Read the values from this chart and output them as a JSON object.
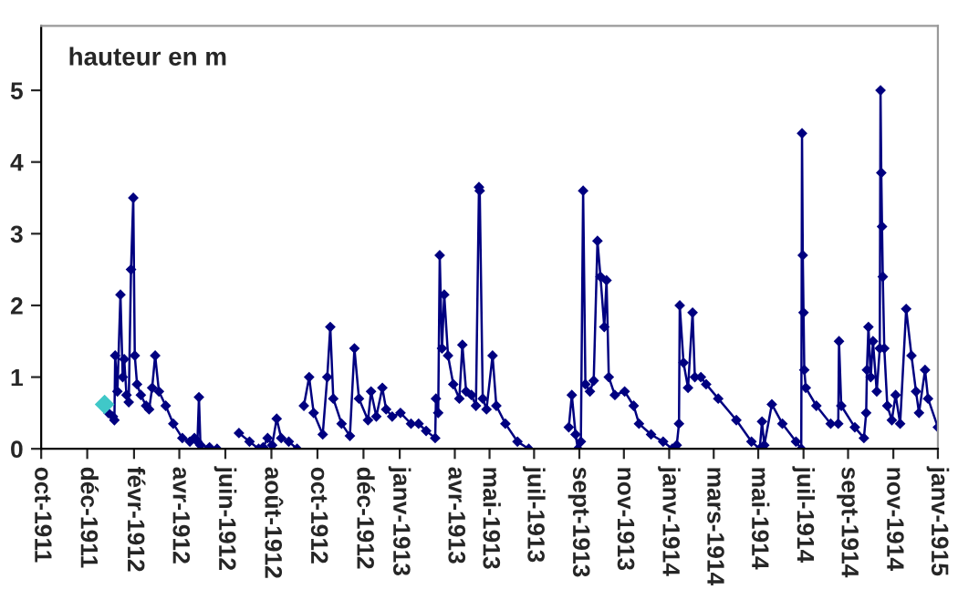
{
  "chart_data": {
    "type": "line",
    "ylabel": "hauteur en m",
    "xlim": [
      "1911-10-01",
      "1915-01-01"
    ],
    "ylim": [
      0,
      5.9
    ],
    "yticks": [
      0,
      1,
      2,
      3,
      4,
      5
    ],
    "xticks": [
      {
        "value": "1911-10-01",
        "label": "oct-1911"
      },
      {
        "value": "1911-12-01",
        "label": "déc-1911"
      },
      {
        "value": "1912-02-01",
        "label": "févr-1912"
      },
      {
        "value": "1912-04-01",
        "label": "avr-1912"
      },
      {
        "value": "1912-06-01",
        "label": "juin-1912"
      },
      {
        "value": "1912-08-01",
        "label": "août-1912"
      },
      {
        "value": "1912-10-01",
        "label": "oct-1912"
      },
      {
        "value": "1912-12-01",
        "label": "déc-1912"
      },
      {
        "value": "1913-01-18",
        "label": "janv-1913"
      },
      {
        "value": "1913-04-01",
        "label": "avr-1913"
      },
      {
        "value": "1913-05-17",
        "label": "mai-1913"
      },
      {
        "value": "1913-07-15",
        "label": "juil-1913"
      },
      {
        "value": "1913-09-13",
        "label": "sept-1913"
      },
      {
        "value": "1913-11-11",
        "label": "nov-1913"
      },
      {
        "value": "1914-01-10",
        "label": "janv-1914"
      },
      {
        "value": "1914-03-10",
        "label": "mars-1914"
      },
      {
        "value": "1914-05-08",
        "label": "mai-1914"
      },
      {
        "value": "1914-07-07",
        "label": "juil-1914"
      },
      {
        "value": "1914-09-04",
        "label": "sept-1914"
      },
      {
        "value": "1914-11-03",
        "label": "nov-1914"
      },
      {
        "value": "1915-01-01",
        "label": "janv-1915"
      }
    ],
    "marker": "diamond",
    "line_style": "solid",
    "grid": false,
    "legend": false,
    "series": [
      {
        "type": "scatter",
        "color": "#40c8c8",
        "x": [
          "1911-12-24"
        ],
        "values": [
          0.62
        ]
      },
      {
        "type": "line",
        "color": "#000080",
        "x": [
          "1911-12-29",
          "1912-01-04",
          "1912-01-06",
          "1912-01-07",
          "1912-01-10",
          "1912-01-14",
          "1912-01-17",
          "1912-01-19",
          "1912-01-22",
          "1912-01-25",
          "1912-01-28",
          "1912-01-31",
          "1912-02-02",
          "1912-02-05",
          "1912-02-10",
          "1912-02-17",
          "1912-02-21",
          "1912-02-25",
          "1912-02-29",
          "1912-03-05",
          "1912-03-14",
          "1912-03-24",
          "1912-04-05",
          "1912-04-15",
          "1912-04-21",
          "1912-04-25",
          "1912-04-27",
          "1912-04-29",
          "1912-05-11",
          "1912-05-21",
          "1912-06-05",
          "1912-06-19",
          "1912-07-03",
          "1912-07-15",
          "1912-07-21",
          "1912-07-27",
          "1912-08-02",
          "1912-08-08",
          "1912-08-14",
          "1912-08-24",
          "1912-09-04",
          "1912-09-08",
          "1912-09-13",
          "1912-09-20",
          "1912-09-26",
          "1912-10-08",
          "1912-10-14",
          "1912-10-18",
          "1912-10-22",
          "1912-11-02",
          "1912-11-13",
          "1912-11-19",
          "1912-11-25",
          "1912-12-07",
          "1912-12-11",
          "1912-12-18",
          "1912-12-26",
          "1912-12-31",
          "1913-01-08",
          "1913-01-19",
          "1913-02-02",
          "1913-02-12",
          "1913-02-22",
          "1913-03-06",
          "1913-03-07",
          "1913-03-10",
          "1913-03-12",
          "1913-03-15",
          "1913-03-18",
          "1913-03-23",
          "1913-03-30",
          "1913-04-07",
          "1913-04-11",
          "1913-04-16",
          "1913-04-23",
          "1913-04-29",
          "1913-05-03",
          "1913-05-04",
          "1913-05-08",
          "1913-05-13",
          "1913-05-21",
          "1913-05-26",
          "1913-06-07",
          "1913-06-23",
          "1913-07-08",
          "1913-07-30",
          "1913-08-30",
          "1913-09-03",
          "1913-09-08",
          "1913-09-11",
          "1913-09-15",
          "1913-09-18",
          "1913-09-21",
          "1913-09-27",
          "1913-10-02",
          "1913-10-07",
          "1913-10-11",
          "1913-10-16",
          "1913-10-19",
          "1913-10-22",
          "1913-10-30",
          "1913-11-12",
          "1913-11-24",
          "1913-12-01",
          "1913-12-17",
          "1914-01-02",
          "1914-01-14",
          "1914-01-20",
          "1914-01-23",
          "1914-01-24",
          "1914-01-29",
          "1914-02-04",
          "1914-02-10",
          "1914-02-13",
          "1914-02-21",
          "1914-02-28",
          "1914-03-16",
          "1914-04-09",
          "1914-04-29",
          "1914-05-10",
          "1914-05-13",
          "1914-05-16",
          "1914-05-26",
          "1914-06-09",
          "1914-06-27",
          "1914-07-04",
          "1914-07-05",
          "1914-07-06",
          "1914-07-07",
          "1914-07-08",
          "1914-07-10",
          "1914-07-24",
          "1914-08-12",
          "1914-08-22",
          "1914-08-23",
          "1914-08-26",
          "1914-09-13",
          "1914-09-25",
          "1914-09-28",
          "1914-09-29",
          "1914-10-01",
          "1914-10-04",
          "1914-10-07",
          "1914-10-12",
          "1914-10-16",
          "1914-10-17",
          "1914-10-18",
          "1914-10-19",
          "1914-10-20",
          "1914-10-22",
          "1914-10-26",
          "1914-11-01",
          "1914-11-06",
          "1914-11-12",
          "1914-11-20",
          "1914-11-27",
          "1914-12-03",
          "1914-12-07",
          "1914-12-15",
          "1914-12-19",
          "1915-01-01"
        ],
        "values": [
          0.5,
          0.45,
          0.4,
          1.3,
          0.8,
          2.15,
          1.0,
          1.25,
          0.75,
          0.65,
          2.5,
          3.5,
          1.3,
          0.9,
          0.75,
          0.6,
          0.55,
          0.85,
          1.3,
          0.8,
          0.6,
          0.35,
          0.15,
          0.1,
          0.15,
          0.1,
          0.72,
          0.05,
          0.02,
          0.0,
          null,
          0.22,
          0.1,
          0.0,
          0.02,
          0.15,
          0.05,
          0.42,
          0.15,
          0.1,
          0.0,
          null,
          0.6,
          1.0,
          0.5,
          0.2,
          1.0,
          1.7,
          0.7,
          0.35,
          0.18,
          1.4,
          0.7,
          0.4,
          0.8,
          0.45,
          0.85,
          0.55,
          0.45,
          0.5,
          0.35,
          0.35,
          0.25,
          0.15,
          0.7,
          0.5,
          2.7,
          1.4,
          2.15,
          1.3,
          0.9,
          0.7,
          1.45,
          0.8,
          0.75,
          0.6,
          3.65,
          3.6,
          0.7,
          0.55,
          1.3,
          0.6,
          0.35,
          0.1,
          0.0,
          null,
          0.3,
          0.75,
          0.2,
          0.0,
          0.1,
          3.6,
          0.9,
          0.8,
          0.95,
          2.9,
          2.4,
          1.7,
          2.35,
          1.0,
          0.75,
          0.8,
          0.6,
          0.35,
          0.2,
          0.1,
          0.0,
          0.05,
          0.35,
          2.0,
          1.2,
          0.85,
          1.9,
          1.0,
          1.0,
          0.9,
          0.7,
          0.4,
          0.1,
          0.0,
          0.38,
          0.05,
          0.62,
          0.35,
          0.1,
          0.0,
          4.4,
          2.7,
          1.9,
          1.1,
          0.85,
          0.6,
          0.35,
          0.35,
          1.5,
          0.6,
          0.3,
          0.15,
          0.5,
          1.1,
          1.7,
          1.0,
          1.5,
          0.8,
          1.4,
          5.0,
          3.85,
          3.1,
          2.4,
          1.4,
          0.6,
          0.4,
          0.75,
          0.35,
          1.95,
          1.3,
          0.8,
          0.5,
          1.1,
          0.7,
          0.3
        ]
      }
    ]
  }
}
